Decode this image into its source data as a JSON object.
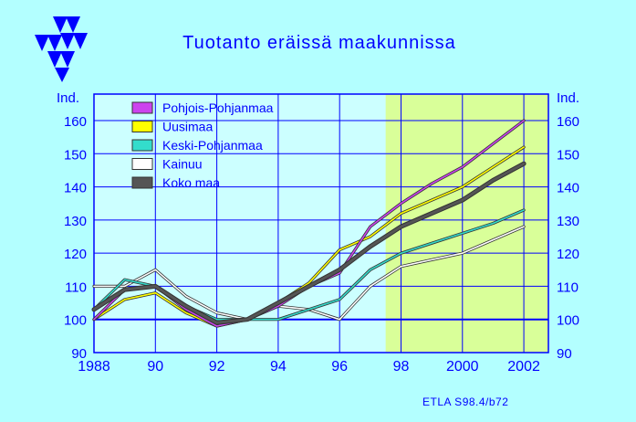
{
  "logo": {
    "icon": "etla-triangles-logo",
    "color": "#0000ff"
  },
  "colors": {
    "background": "#b3ffff",
    "plot_background": "#ccffff",
    "forecast_background": "#d9ff99",
    "axis": "#0000ff",
    "grid": "#0000ff"
  },
  "chart_data": {
    "type": "line",
    "title": "Tuotanto eräissä maakunnissa",
    "ylabel_left": "Ind.",
    "ylabel_right": "Ind.",
    "xlabel": "",
    "xlim": [
      1988,
      2002.8
    ],
    "ylim": [
      90,
      168
    ],
    "x_ticks": [
      1988,
      1990,
      1992,
      1994,
      1996,
      1998,
      2000,
      2002
    ],
    "x_tick_labels": [
      "1988",
      "90",
      "92",
      "94",
      "96",
      "98",
      "2000",
      "2002"
    ],
    "y_ticks": [
      90,
      100,
      110,
      120,
      130,
      140,
      150,
      160
    ],
    "y_tick_labels": [
      "90",
      "100",
      "110",
      "120",
      "130",
      "140",
      "150",
      "160"
    ],
    "grid": true,
    "legend_placement": "top-left",
    "shaded_region": {
      "from": 1997.5,
      "to": 2002.8,
      "label": ""
    },
    "series": [
      {
        "name": "Pohjois-Pohjanmaa",
        "color": "#cc44ee",
        "x": [
          1988,
          1989,
          1990,
          1991,
          1992,
          1993,
          1994,
          1995,
          1996,
          1997,
          1998,
          1999,
          2000,
          2001,
          2002
        ],
        "values": [
          100,
          109,
          110,
          103,
          98,
          100,
          104,
          110,
          114,
          128,
          135,
          141,
          146,
          153,
          160
        ]
      },
      {
        "name": "Uusimaa",
        "color": "#ffff00",
        "x": [
          1988,
          1989,
          1990,
          1991,
          1992,
          1993,
          1994,
          1995,
          1996,
          1997,
          1998,
          1999,
          2000,
          2001,
          2002
        ],
        "values": [
          100,
          106,
          108,
          102,
          98,
          100,
          105,
          111,
          121,
          125,
          132,
          136,
          140,
          146,
          152
        ]
      },
      {
        "name": "Keski-Pohjanmaa",
        "color": "#33ddcc",
        "x": [
          1988,
          1989,
          1990,
          1991,
          1992,
          1993,
          1994,
          1995,
          1996,
          1997,
          1998,
          1999,
          2000,
          2001,
          2002
        ],
        "values": [
          103,
          112,
          110,
          104,
          100,
          100,
          100,
          103,
          106,
          115,
          120,
          123,
          126,
          129,
          133
        ]
      },
      {
        "name": "Kainuu",
        "color": "#ffffff",
        "x": [
          1988,
          1989,
          1990,
          1991,
          1992,
          1993,
          1994,
          1995,
          1996,
          1997,
          1998,
          1999,
          2000,
          2001,
          2002
        ],
        "values": [
          110,
          110,
          115,
          107,
          102,
          100,
          104,
          103,
          100,
          110,
          116,
          118,
          120,
          124,
          128
        ]
      },
      {
        "name": "Koko maa",
        "color": "#555555",
        "x": [
          1988,
          1989,
          1990,
          1991,
          1992,
          1993,
          1994,
          1995,
          1996,
          1997,
          1998,
          1999,
          2000,
          2001,
          2002
        ],
        "values": [
          103,
          109,
          110,
          104,
          99,
          100,
          105,
          110,
          115,
          122,
          128,
          132,
          136,
          142,
          147
        ]
      }
    ]
  },
  "footer": {
    "source": "ETLA S98.4/b72"
  }
}
